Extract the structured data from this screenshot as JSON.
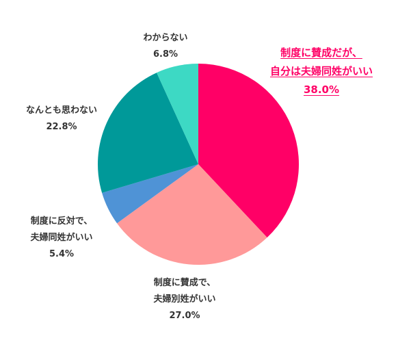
{
  "chart_data": {
    "type": "pie",
    "start_angle_deg": 0,
    "direction": "clockwise",
    "slices": [
      {
        "label_lines": [
          "制度に賛成だが、",
          "自分は夫婦同姓がいい"
        ],
        "value": 38.0,
        "value_label": "38.0%",
        "color": "#ff0066",
        "highlight": true
      },
      {
        "label_lines": [
          "制度に賛成で、",
          "夫婦別姓がいい"
        ],
        "value": 27.0,
        "value_label": "27.0%",
        "color": "#ff9999",
        "highlight": false
      },
      {
        "label_lines": [
          "制度に反対で、",
          "夫婦同姓がいい"
        ],
        "value": 5.4,
        "value_label": "5.4%",
        "color": "#4f93d6",
        "highlight": false
      },
      {
        "label_lines": [
          "なんとも思わない"
        ],
        "value": 22.8,
        "value_label": "22.8%",
        "color": "#009999",
        "highlight": false
      },
      {
        "label_lines": [
          "わからない"
        ],
        "value": 6.8,
        "value_label": "6.8%",
        "color": "#3dd9c4",
        "highlight": false
      }
    ]
  }
}
